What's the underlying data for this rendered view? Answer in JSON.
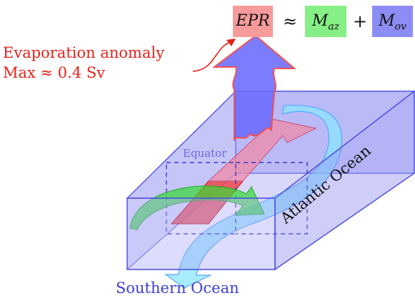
{
  "equation": {
    "epr": "EPR",
    "approx": "≈",
    "m_az_base": "M",
    "m_az_sub": "az",
    "plus": "+",
    "m_ov_base": "M",
    "m_ov_sub": "ov"
  },
  "labels": {
    "evaporation_line1": "Evaporation anomaly",
    "evaporation_line2": "Max ≈ 0.4 Sv",
    "equator": "Equator",
    "southern_ocean": "Southern Ocean",
    "atlantic_ocean": "Atlantic Ocean"
  },
  "colors": {
    "epr_box": "#f99b9b",
    "m_az_box": "#86f086",
    "m_ov_box": "#8c8cf5",
    "evaporation_text": "#e8201a",
    "ocean_box_fill": "#8080ff",
    "ocean_box_edge": "#4a4ae0",
    "azonal_arrow": "#38d838",
    "overturning_arrow": "#8ae6ff",
    "evaporation_arrow": "#6a6aff",
    "anomaly_patch": "#f04040"
  }
}
